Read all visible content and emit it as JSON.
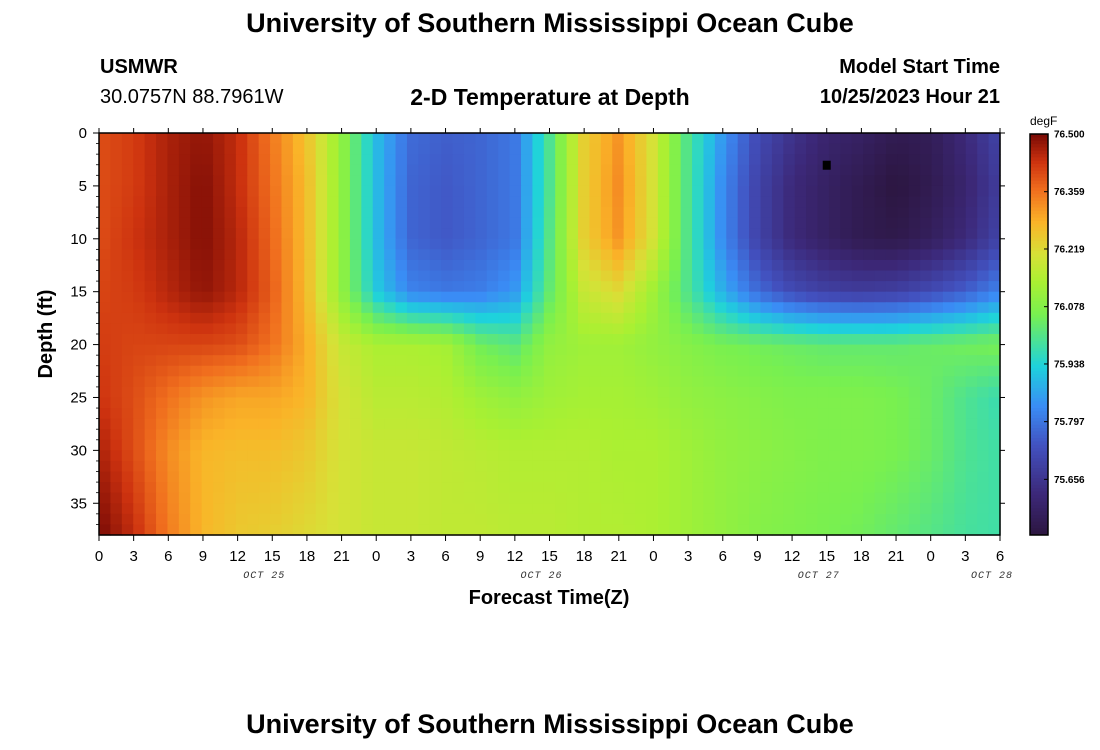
{
  "header": {
    "title": "University of Southern Mississippi Ocean Cube",
    "station": "USMWR",
    "coords": "30.0757N  88.7961W",
    "subtitle": "2-D Temperature at Depth",
    "model_start_label": "Model Start Time",
    "model_start_value": "10/25/2023 Hour 21",
    "footer_title": "University of Southern Mississippi Ocean Cube"
  },
  "chart_data": {
    "type": "heatmap",
    "title": "2-D Temperature at Depth",
    "xlabel": "Forecast Time(Z)",
    "ylabel": "Depth (ft)",
    "x_range_hours": [
      0,
      78
    ],
    "x_tick_labels": [
      "0",
      "3",
      "6",
      "9",
      "12",
      "15",
      "18",
      "21",
      "0",
      "3",
      "6",
      "9",
      "12",
      "15",
      "18",
      "21",
      "0",
      "3",
      "6",
      "9",
      "12",
      "15",
      "18",
      "21",
      "0",
      "3",
      "6"
    ],
    "date_labels": [
      {
        "text": "OCT 25",
        "hour": 15
      },
      {
        "text": "OCT 26",
        "hour": 39
      },
      {
        "text": "OCT 27",
        "hour": 63
      },
      {
        "text": "OCT 28",
        "hour": 78
      }
    ],
    "y_range_ft": [
      0,
      38
    ],
    "y_ticks": [
      0,
      5,
      10,
      15,
      20,
      25,
      30,
      35
    ],
    "colorbar": {
      "unit": "degF",
      "min": 75.52,
      "max": 76.5,
      "tick_labels": [
        "76.500",
        "76.359",
        "76.219",
        "76.078",
        "75.938",
        "75.797",
        "75.656"
      ]
    },
    "grid_x": [
      0,
      3,
      6,
      9,
      12,
      15,
      18,
      21,
      24,
      27,
      30,
      33,
      36,
      39,
      42,
      45,
      48,
      51,
      54,
      57,
      60,
      63,
      66,
      69,
      72,
      75,
      78
    ],
    "grid_y": [
      0,
      5,
      10,
      15,
      20,
      25,
      30,
      38
    ],
    "values": [
      [
        76.4,
        76.42,
        76.46,
        76.48,
        76.44,
        76.35,
        76.26,
        76.1,
        75.9,
        75.78,
        75.76,
        75.77,
        75.8,
        76.0,
        76.24,
        76.32,
        76.2,
        76.0,
        75.85,
        75.72,
        75.65,
        75.6,
        75.58,
        75.55,
        75.56,
        75.62,
        75.7
      ],
      [
        76.4,
        76.42,
        76.46,
        76.49,
        76.44,
        76.36,
        76.27,
        76.1,
        75.9,
        75.77,
        75.75,
        75.77,
        75.8,
        76.0,
        76.24,
        76.33,
        76.2,
        76.0,
        75.83,
        75.7,
        75.62,
        75.58,
        75.55,
        75.52,
        75.55,
        75.6,
        75.68
      ],
      [
        76.4,
        76.43,
        76.46,
        76.49,
        76.45,
        76.37,
        76.27,
        76.1,
        75.9,
        75.77,
        75.75,
        75.77,
        75.8,
        76.01,
        76.24,
        76.32,
        76.2,
        76.0,
        75.83,
        75.7,
        75.62,
        75.58,
        75.55,
        75.54,
        75.57,
        75.62,
        75.7
      ],
      [
        76.41,
        76.42,
        76.45,
        76.48,
        76.45,
        76.38,
        76.27,
        76.1,
        75.92,
        75.82,
        75.8,
        75.81,
        75.85,
        76.03,
        76.18,
        76.22,
        76.12,
        76.0,
        75.88,
        75.78,
        75.72,
        75.69,
        75.68,
        75.69,
        75.72,
        75.76,
        75.82
      ],
      [
        76.42,
        76.41,
        76.41,
        76.41,
        76.4,
        76.36,
        76.29,
        76.18,
        76.14,
        76.14,
        76.13,
        76.05,
        76.02,
        76.1,
        76.12,
        76.12,
        76.1,
        76.08,
        76.06,
        76.05,
        76.04,
        76.03,
        76.03,
        76.03,
        76.04,
        76.05,
        76.06
      ],
      [
        76.43,
        76.4,
        76.36,
        76.32,
        76.3,
        76.3,
        76.28,
        76.2,
        76.16,
        76.16,
        76.15,
        76.12,
        76.1,
        76.12,
        76.13,
        76.13,
        76.12,
        76.1,
        76.09,
        76.08,
        76.07,
        76.07,
        76.07,
        76.06,
        76.04,
        76.0,
        75.97
      ],
      [
        76.46,
        76.4,
        76.33,
        76.28,
        76.27,
        76.27,
        76.25,
        76.2,
        76.18,
        76.18,
        76.17,
        76.16,
        76.15,
        76.15,
        76.15,
        76.14,
        76.14,
        76.12,
        76.1,
        76.09,
        76.08,
        76.07,
        76.07,
        76.06,
        76.04,
        76.0,
        75.98
      ],
      [
        76.5,
        76.44,
        76.35,
        76.28,
        76.25,
        76.24,
        76.22,
        76.2,
        76.18,
        76.18,
        76.17,
        76.17,
        76.16,
        76.16,
        76.15,
        76.15,
        76.14,
        76.12,
        76.1,
        76.08,
        76.07,
        76.06,
        76.05,
        76.03,
        76.01,
        75.99,
        75.98
      ]
    ],
    "marker": {
      "hour": 63,
      "depth_ft": 3
    }
  }
}
